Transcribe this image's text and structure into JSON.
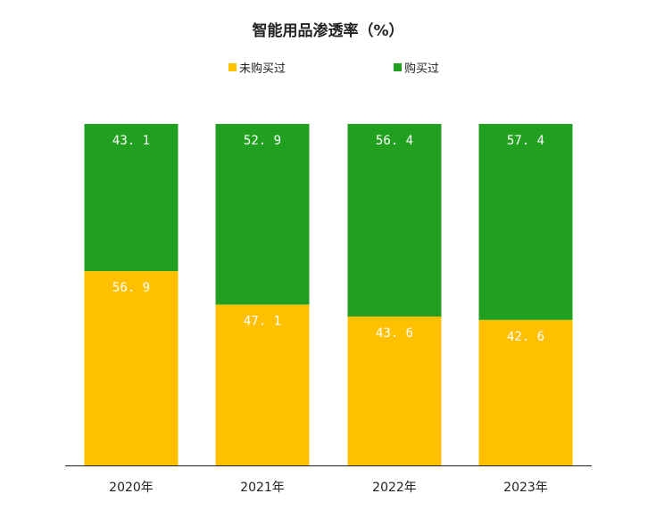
{
  "chart_data": {
    "type": "bar",
    "stacked": true,
    "title": "智能用品渗透率（%）",
    "xlabel": "",
    "ylabel": "",
    "ylim": [
      0,
      100
    ],
    "categories": [
      "2020年",
      "2021年",
      "2022年",
      "2023年"
    ],
    "value_labels": {
      "not_bought": [
        "56. 9",
        "47. 1",
        "43. 6",
        "42. 6"
      ],
      "bought": [
        "43. 1",
        "52. 9",
        "56. 4",
        "57. 4"
      ]
    },
    "series": [
      {
        "name": "未购买过",
        "color": "#FFC000",
        "values": [
          56.9,
          47.1,
          43.6,
          42.6
        ]
      },
      {
        "name": "购买过",
        "color": "#21A020",
        "values": [
          43.1,
          52.9,
          56.4,
          57.4
        ]
      }
    ],
    "legend": "top-center",
    "grid": false
  }
}
